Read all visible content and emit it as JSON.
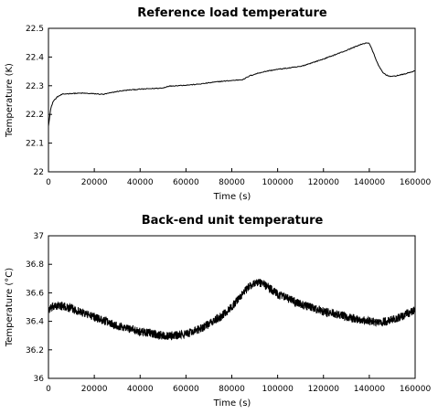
{
  "chart_data": [
    {
      "type": "line",
      "title": "Reference load temperature",
      "xlabel": "Time (s)",
      "ylabel": "Temperature (K)",
      "xlim": [
        0,
        160000
      ],
      "ylim": [
        22,
        22.5
      ],
      "xticks": [
        0,
        20000,
        40000,
        60000,
        80000,
        100000,
        120000,
        140000,
        160000
      ],
      "yticks": [
        22,
        22.1,
        22.2,
        22.3,
        22.4,
        22.5
      ],
      "xtick_labels": [
        "0",
        "20000",
        "40000",
        "60000",
        "80000",
        "100000",
        "120000",
        "140000",
        "160000"
      ],
      "ytick_labels": [
        "22",
        "22.1",
        "22.2",
        "22.3",
        "22.4",
        "22.5"
      ],
      "grid": false,
      "series": [
        {
          "color": "#000000",
          "noise": 0.0015,
          "x": [
            0,
            1000,
            2000,
            4000,
            6000,
            8000,
            10000,
            15000,
            20000,
            24000,
            27000,
            30000,
            35000,
            40000,
            45000,
            50000,
            52000,
            55000,
            60000,
            65000,
            70000,
            75000,
            80000,
            85000,
            88000,
            92000,
            96000,
            100000,
            110000,
            115000,
            120000,
            125000,
            130000,
            135000,
            139000,
            140000,
            142000,
            144000,
            146000,
            148000,
            150000,
            155000,
            160000
          ],
          "y": [
            22.16,
            22.22,
            22.245,
            22.262,
            22.27,
            22.272,
            22.273,
            22.274,
            22.272,
            22.27,
            22.275,
            22.28,
            22.285,
            22.288,
            22.29,
            22.292,
            22.298,
            22.3,
            22.302,
            22.305,
            22.31,
            22.315,
            22.318,
            22.322,
            22.335,
            22.345,
            22.352,
            22.357,
            22.367,
            22.38,
            22.393,
            22.408,
            22.423,
            22.44,
            22.45,
            22.448,
            22.41,
            22.37,
            22.345,
            22.335,
            22.332,
            22.34,
            22.352
          ]
        }
      ]
    },
    {
      "type": "line",
      "title": "Back-end unit temperature",
      "xlabel": "Time (s)",
      "ylabel": "Temperature (°C)",
      "xlim": [
        0,
        160000
      ],
      "ylim": [
        36,
        37
      ],
      "xticks": [
        0,
        20000,
        40000,
        60000,
        80000,
        100000,
        120000,
        140000,
        160000
      ],
      "yticks": [
        36,
        36.2,
        36.4,
        36.6,
        36.8,
        37
      ],
      "xtick_labels": [
        "0",
        "20000",
        "40000",
        "60000",
        "80000",
        "100000",
        "120000",
        "140000",
        "160000"
      ],
      "ytick_labels": [
        "36",
        "36.2",
        "36.4",
        "36.6",
        "36.8",
        "37"
      ],
      "grid": false,
      "series": [
        {
          "color": "#000000",
          "noise": 0.03,
          "x": [
            0,
            2000,
            5000,
            10000,
            20000,
            30000,
            40000,
            50000,
            55000,
            60000,
            65000,
            70000,
            75000,
            80000,
            85000,
            88000,
            90000,
            93000,
            96000,
            100000,
            110000,
            120000,
            130000,
            140000,
            145000,
            150000,
            155000,
            160000
          ],
          "y": [
            36.48,
            36.5,
            36.51,
            36.49,
            36.43,
            36.37,
            36.33,
            36.3,
            36.3,
            36.31,
            36.34,
            36.38,
            36.43,
            36.5,
            36.6,
            36.65,
            36.67,
            36.67,
            36.64,
            36.59,
            36.52,
            36.47,
            36.43,
            36.4,
            36.39,
            36.41,
            36.44,
            36.48
          ]
        }
      ]
    }
  ]
}
